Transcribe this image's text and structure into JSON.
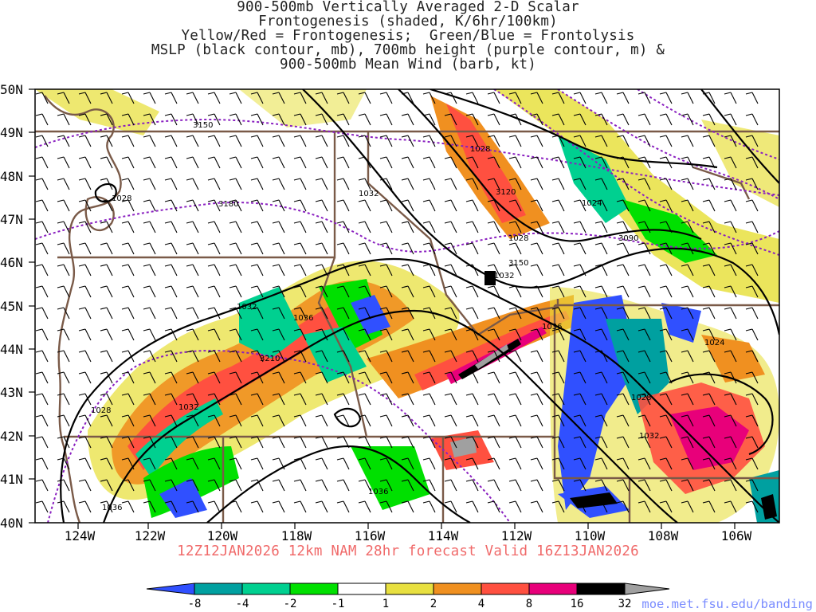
{
  "title_lines": [
    "900-500mb Vertically Averaged 2-D Scalar",
    "Frontogenesis (shaded, K/6hr/100km)",
    "Yellow/Red = Frontogenesis;  Green/Blue = Frontolysis",
    "MSLP (black contour, mb), 700mb height (purple contour, m) &",
    "900-500mb Mean Wind (barb, kt)"
  ],
  "footer": "12Z12JAN2026 12km NAM 28hr forecast Valid 16Z13JAN2026",
  "url": "moe.met.fsu.edu/banding",
  "axes": {
    "lat_labels": [
      "50N",
      "49N",
      "48N",
      "47N",
      "46N",
      "45N",
      "44N",
      "43N",
      "42N",
      "41N",
      "40N"
    ],
    "lon_labels": [
      "124W",
      "122W",
      "120W",
      "118W",
      "116W",
      "114W",
      "112W",
      "110W",
      "108W",
      "106W"
    ]
  },
  "contour_labels": {
    "mslp": [
      "1028",
      "1032",
      "1036",
      "1032",
      "1036",
      "1028",
      "1024",
      "1036",
      "1032",
      "1024",
      "1028",
      "1028",
      "1032",
      "1032",
      "1036",
      "1028"
    ],
    "height": [
      "3150",
      "3180",
      "3210",
      "3090",
      "3120",
      "3150"
    ]
  },
  "colorbar": {
    "labels": [
      "-8",
      "-4",
      "-2",
      "-1",
      "1",
      "2",
      "4",
      "8",
      "16",
      "32"
    ],
    "colors": [
      "#3050ff",
      "#00a0a0",
      "#00d090",
      "#00e000",
      "#ffffff",
      "#e8e040",
      "#f09020",
      "#ff5040",
      "#e8007a",
      "#000000",
      "#a0a0a0"
    ]
  },
  "colors": {
    "land_border": "#7a5a48",
    "mslp": "#000000",
    "height": "#8a20c0",
    "footer": "#f06a6a",
    "url": "#7a8cff"
  }
}
